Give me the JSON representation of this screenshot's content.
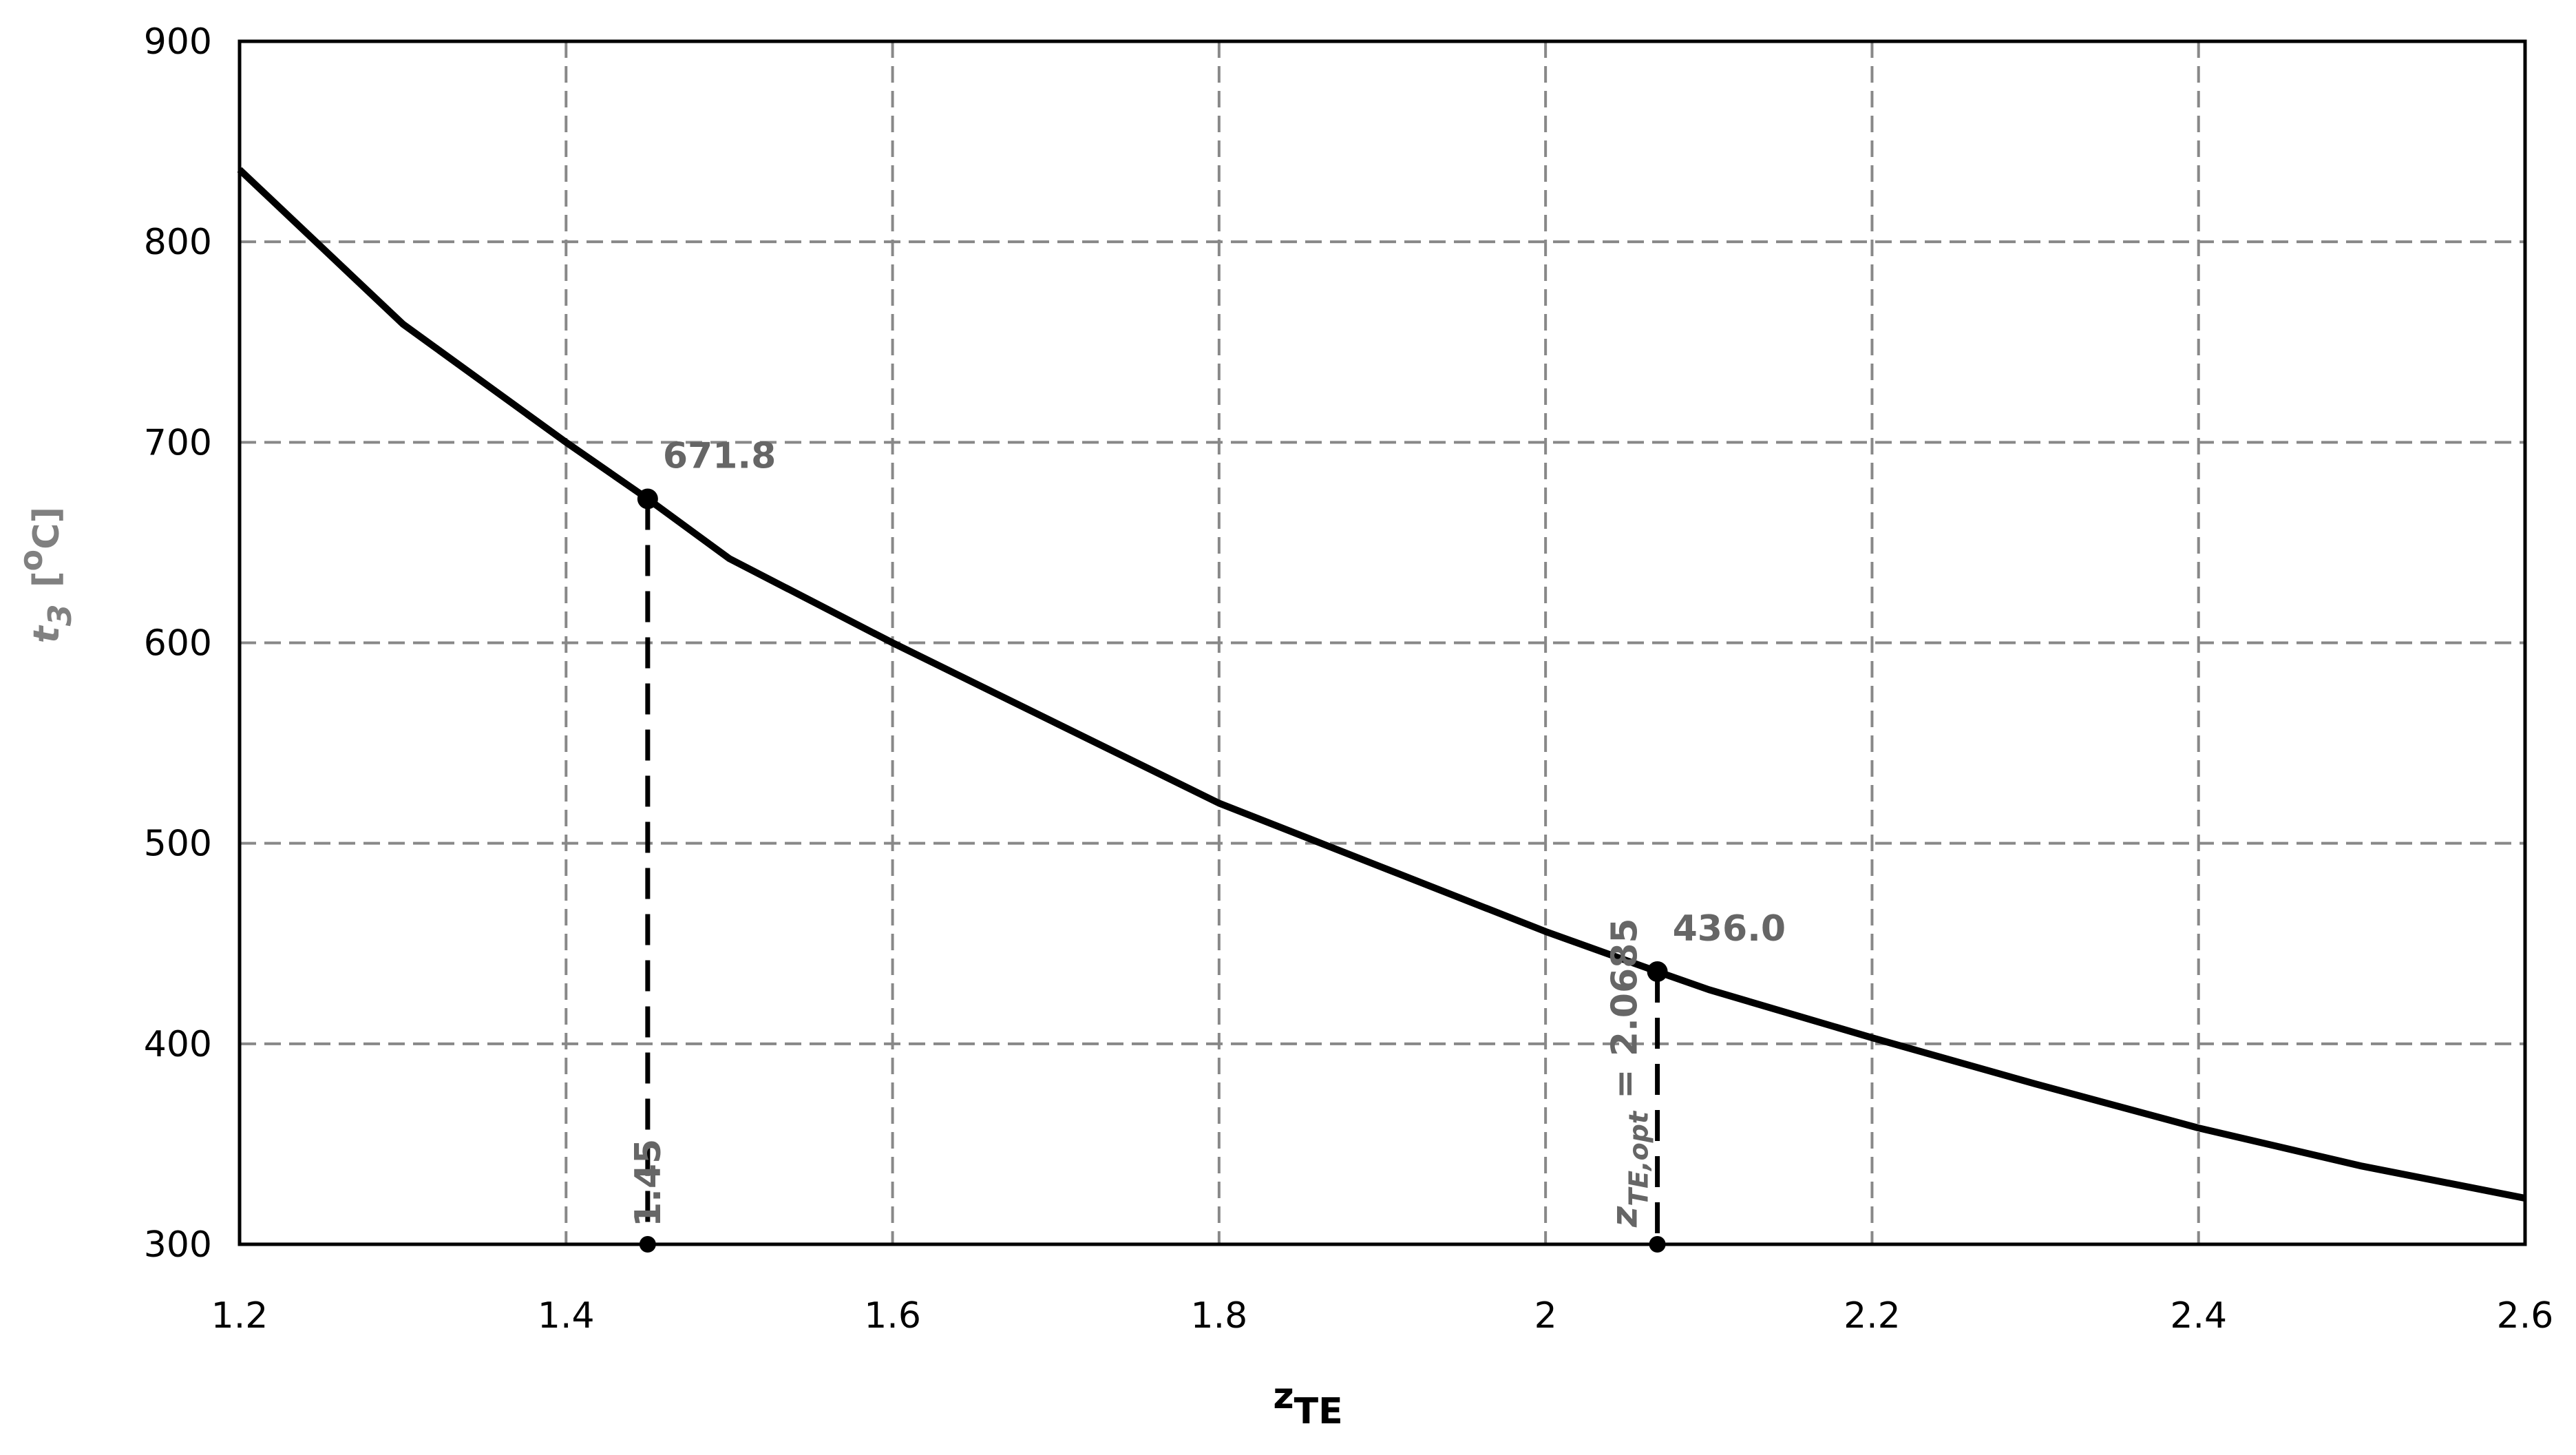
{
  "chart_data": {
    "type": "line",
    "x_label": [
      "z",
      "TE"
    ],
    "y_label": [
      "t",
      "3",
      "[",
      "o",
      "C]"
    ],
    "x": [
      1.2,
      1.3,
      1.4,
      1.45,
      1.5,
      1.6,
      1.7,
      1.8,
      1.9,
      2.0,
      2.0685,
      2.1,
      2.2,
      2.3,
      2.4,
      2.5,
      2.6
    ],
    "series": [
      {
        "color": "#000000",
        "values": [
          836,
          759,
          700,
          671.8,
          642,
          600,
          560,
          520,
          488,
          456,
          436,
          427,
          403,
          380,
          358,
          339,
          323
        ]
      }
    ],
    "points": [
      {
        "x": 1.45,
        "y": 671.8,
        "y_label": "671.8",
        "x_label": [
          "1.45"
        ]
      },
      {
        "x": 2.0685,
        "y": 436,
        "y_label": "436.0",
        "x_label": [
          "z",
          "TE,opt",
          " = 2.0685"
        ]
      }
    ],
    "xlim": [
      1.2,
      2.6
    ],
    "ylim": [
      300,
      900
    ],
    "xticks": [
      1.2,
      1.4,
      1.6,
      1.8,
      2,
      2.2,
      2.4,
      2.6
    ],
    "yticks": [
      300,
      400,
      500,
      600,
      700,
      800,
      900
    ],
    "grid": true
  }
}
